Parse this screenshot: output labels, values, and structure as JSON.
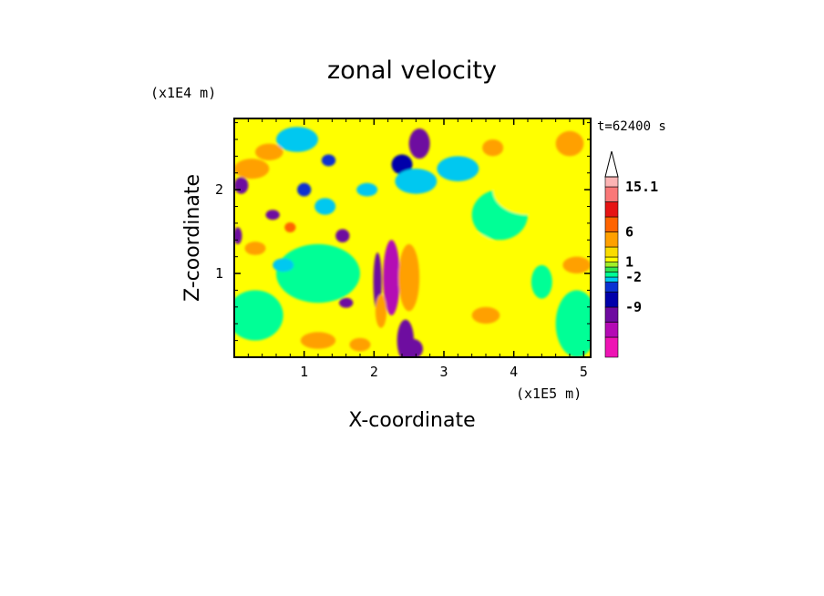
{
  "chart_data": {
    "type": "heatmap",
    "title": "zonal velocity",
    "xlabel": "X-coordinate",
    "ylabel": "Z-coordinate",
    "x_unit": "(x1E5 m)",
    "y_unit": "(x1E4 m)",
    "time_label": "t=62400 s",
    "xlim": [
      0,
      5.1
    ],
    "ylim": [
      0,
      2.85
    ],
    "x_ticks": [
      "1",
      "2",
      "3",
      "4",
      "5"
    ],
    "x_tick_values": [
      1,
      2,
      3,
      4,
      5
    ],
    "y_ticks": [
      "1",
      "2"
    ],
    "y_tick_values": [
      1,
      2
    ],
    "grid": false,
    "colorbar": {
      "position": "right",
      "labels": [
        "15.1",
        "6",
        "1",
        "-2",
        "-9"
      ],
      "levels": [
        -20,
        -12,
        -9,
        -6,
        -3,
        -2,
        -1,
        0,
        1,
        2,
        3,
        6,
        9,
        12,
        15.1
      ],
      "colors": [
        "#ee14b4",
        "#b40ab4",
        "#6e0aa0",
        "#0000aa",
        "#0a32d2",
        "#00c8f0",
        "#00ff96",
        "#32e650",
        "#a0f028",
        "#ffff00",
        "#fadc00",
        "#ffa000",
        "#ff6400",
        "#e61414",
        "#fa7878",
        "#fcb4b4",
        "#ffffff"
      ]
    },
    "blobs": [
      {
        "x": 2.25,
        "z": 0.95,
        "rx": 0.12,
        "rz": 0.45,
        "v": -14
      },
      {
        "x": 2.05,
        "z": 0.9,
        "rx": 0.06,
        "rz": 0.35,
        "v": -12
      },
      {
        "x": 2.45,
        "z": 0.2,
        "rx": 0.12,
        "rz": 0.25,
        "v": -10
      },
      {
        "x": 2.55,
        "z": 0.1,
        "rx": 0.15,
        "rz": 0.12,
        "v": -12
      },
      {
        "x": 2.1,
        "z": 0.55,
        "rx": 0.08,
        "rz": 0.2,
        "v": 5
      },
      {
        "x": 2.5,
        "z": 0.95,
        "rx": 0.15,
        "rz": 0.4,
        "v": 4
      },
      {
        "x": 2.65,
        "z": 2.55,
        "rx": 0.15,
        "rz": 0.18,
        "v": -12
      },
      {
        "x": 2.4,
        "z": 2.3,
        "rx": 0.15,
        "rz": 0.12,
        "v": -8
      },
      {
        "x": 2.6,
        "z": 2.1,
        "rx": 0.3,
        "rz": 0.15,
        "v": -2.5
      },
      {
        "x": 3.2,
        "z": 2.25,
        "rx": 0.3,
        "rz": 0.15,
        "v": -2.5
      },
      {
        "x": 0.1,
        "z": 2.05,
        "rx": 0.1,
        "rz": 0.1,
        "v": -12
      },
      {
        "x": 0.55,
        "z": 1.7,
        "rx": 0.1,
        "rz": 0.06,
        "v": -12
      },
      {
        "x": 1.55,
        "z": 1.45,
        "rx": 0.1,
        "rz": 0.08,
        "v": -10
      },
      {
        "x": 1.6,
        "z": 0.65,
        "rx": 0.1,
        "rz": 0.06,
        "v": -10
      },
      {
        "x": 0.05,
        "z": 1.45,
        "rx": 0.06,
        "rz": 0.1,
        "v": -10
      },
      {
        "x": 0.25,
        "z": 2.25,
        "rx": 0.25,
        "rz": 0.12,
        "v": 5
      },
      {
        "x": 0.5,
        "z": 2.45,
        "rx": 0.2,
        "rz": 0.1,
        "v": 4
      },
      {
        "x": 0.3,
        "z": 1.3,
        "rx": 0.15,
        "rz": 0.08,
        "v": 4
      },
      {
        "x": 1.2,
        "z": 0.2,
        "rx": 0.25,
        "rz": 0.1,
        "v": 4
      },
      {
        "x": 1.8,
        "z": 0.15,
        "rx": 0.15,
        "rz": 0.08,
        "v": 5
      },
      {
        "x": 3.6,
        "z": 0.5,
        "rx": 0.2,
        "rz": 0.1,
        "v": 4
      },
      {
        "x": 3.7,
        "z": 2.5,
        "rx": 0.15,
        "rz": 0.1,
        "v": 4
      },
      {
        "x": 4.8,
        "z": 2.55,
        "rx": 0.2,
        "rz": 0.15,
        "v": 4
      },
      {
        "x": 4.9,
        "z": 1.1,
        "rx": 0.2,
        "rz": 0.1,
        "v": 3
      },
      {
        "x": 0.3,
        "z": 0.5,
        "rx": 0.4,
        "rz": 0.3,
        "v": -1.5
      },
      {
        "x": 1.2,
        "z": 1.0,
        "rx": 0.6,
        "rz": 0.35,
        "v": -1.5
      },
      {
        "x": 3.8,
        "z": 1.7,
        "rx": 0.4,
        "rz": 0.3,
        "v": -1.5
      },
      {
        "x": 4.9,
        "z": 0.4,
        "rx": 0.3,
        "rz": 0.4,
        "v": -1.5
      },
      {
        "x": 3.3,
        "z": 1.2,
        "rx": 0.5,
        "rz": 0.3,
        "v": 1.5
      },
      {
        "x": 4.2,
        "z": 2.0,
        "rx": 0.5,
        "rz": 0.3,
        "v": 1.5
      },
      {
        "x": 0.9,
        "z": 2.6,
        "rx": 0.3,
        "rz": 0.15,
        "v": -2.5
      },
      {
        "x": 1.3,
        "z": 1.8,
        "rx": 0.15,
        "rz": 0.1,
        "v": -2.5
      },
      {
        "x": 0.7,
        "z": 1.1,
        "rx": 0.15,
        "rz": 0.08,
        "v": -2.5
      },
      {
        "x": 1.9,
        "z": 2.0,
        "rx": 0.15,
        "rz": 0.08,
        "v": -2.5
      },
      {
        "x": 4.4,
        "z": 0.9,
        "rx": 0.15,
        "rz": 0.2,
        "v": -1.5
      },
      {
        "x": 1.0,
        "z": 2.0,
        "rx": 0.1,
        "rz": 0.08,
        "v": -6
      },
      {
        "x": 1.35,
        "z": 2.35,
        "rx": 0.1,
        "rz": 0.07,
        "v": -6
      },
      {
        "x": 0.8,
        "z": 1.55,
        "rx": 0.08,
        "rz": 0.06,
        "v": 6
      }
    ]
  }
}
